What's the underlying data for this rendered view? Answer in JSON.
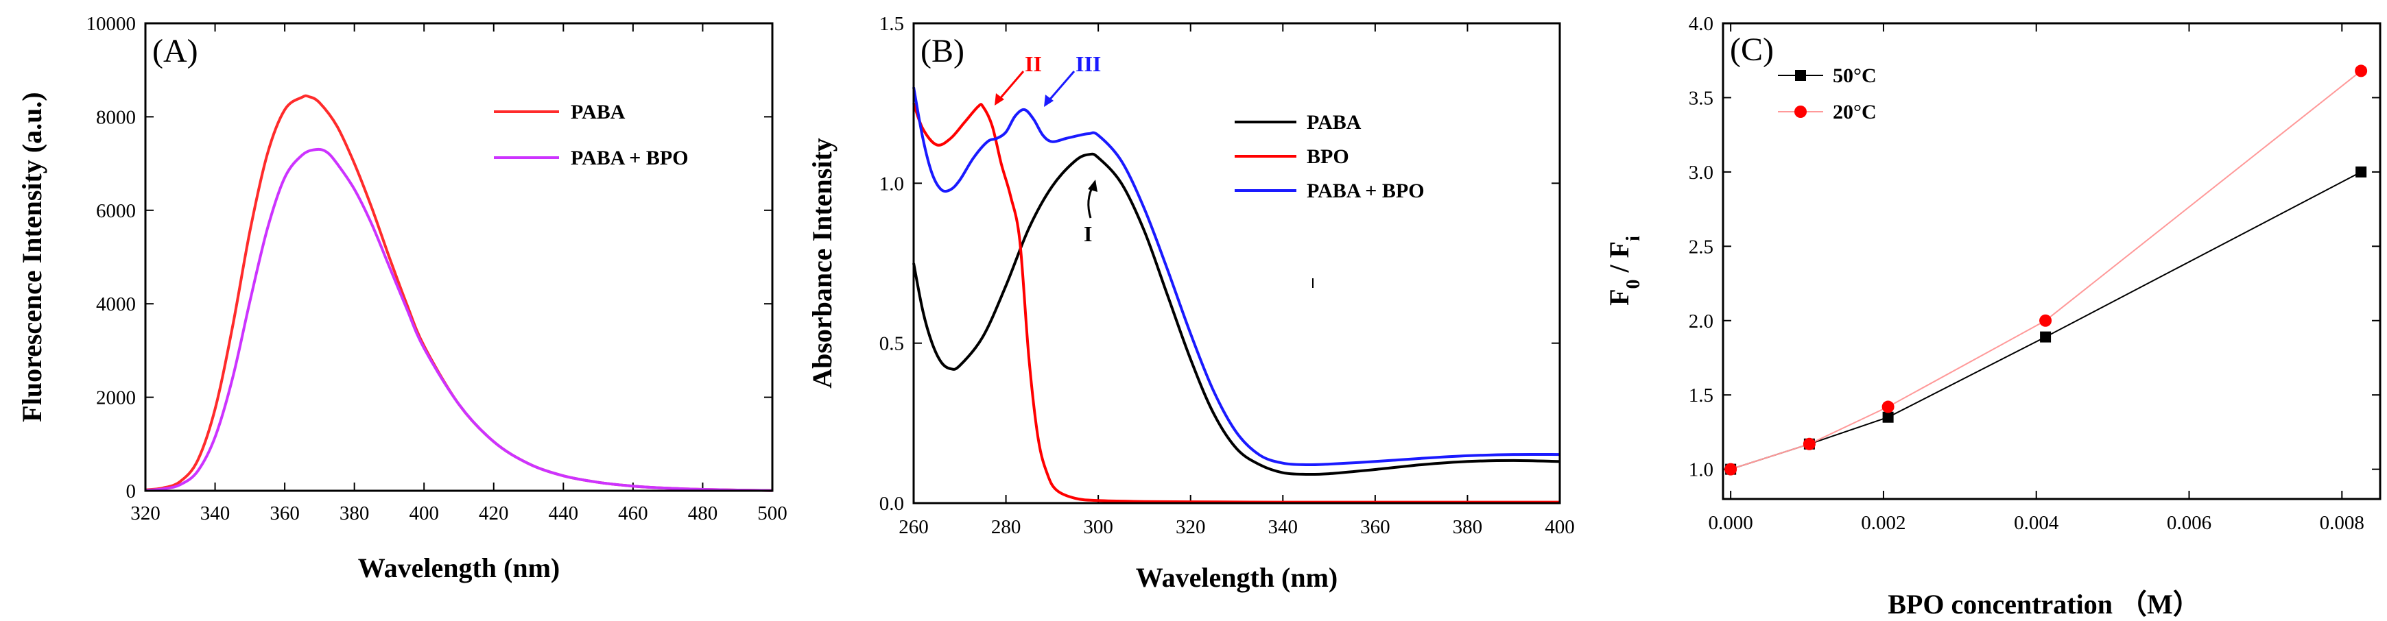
{
  "chart_data": [
    {
      "id": "A",
      "type": "line",
      "title": "(A)",
      "xlabel": "Wavelength (nm)",
      "ylabel": "Fluorescence Intensity (a.u.)",
      "xlim": [
        320,
        500
      ],
      "ylim": [
        0,
        10000
      ],
      "xticks": [
        320,
        340,
        360,
        380,
        400,
        420,
        440,
        460,
        480,
        500
      ],
      "yticks": [
        0,
        2000,
        4000,
        6000,
        8000,
        10000
      ],
      "legend_position": "top-right",
      "series": [
        {
          "name": "PABA",
          "color": "#ff2b2b",
          "x": [
            320,
            325,
            330,
            335,
            340,
            345,
            350,
            355,
            360,
            365,
            367,
            370,
            375,
            380,
            385,
            390,
            395,
            400,
            410,
            420,
            430,
            440,
            450,
            460,
            470,
            480,
            490,
            500
          ],
          "y": [
            20,
            60,
            200,
            650,
            1750,
            3500,
            5550,
            7200,
            8150,
            8420,
            8430,
            8300,
            7800,
            7000,
            6050,
            5000,
            4000,
            3100,
            1850,
            1050,
            580,
            320,
            180,
            100,
            55,
            30,
            15,
            5
          ]
        },
        {
          "name": "PABA + BPO",
          "color": "#cc33ff",
          "x": [
            320,
            325,
            330,
            335,
            340,
            345,
            350,
            355,
            360,
            365,
            369,
            372,
            375,
            380,
            385,
            390,
            395,
            400,
            410,
            420,
            430,
            440,
            450,
            460,
            470,
            480,
            490,
            500
          ],
          "y": [
            10,
            40,
            130,
            420,
            1150,
            2400,
            4050,
            5600,
            6700,
            7180,
            7300,
            7250,
            7000,
            6450,
            5700,
            4800,
            3900,
            3050,
            1850,
            1050,
            580,
            320,
            180,
            100,
            55,
            30,
            15,
            5
          ]
        }
      ]
    },
    {
      "id": "B",
      "type": "line",
      "title": "(B)",
      "xlabel": "Wavelength (nm)",
      "ylabel": "Absorbance Intensity",
      "xlim": [
        260,
        400
      ],
      "ylim": [
        0,
        1.5
      ],
      "xticks": [
        260,
        280,
        300,
        320,
        340,
        360,
        380,
        400
      ],
      "yticks": [
        0.0,
        0.5,
        1.0,
        1.5
      ],
      "ytick_labels": [
        "0.0",
        "0.5",
        "1.0",
        "1.5"
      ],
      "legend_position": "center-right",
      "annotations": [
        {
          "text": "I",
          "color": "#000000"
        },
        {
          "text": "II",
          "color": "#ff0000"
        },
        {
          "text": "III",
          "color": "#1a1aff"
        }
      ],
      "series": [
        {
          "name": "PABA",
          "color": "#000000",
          "x": [
            260,
            262,
            264,
            266,
            268,
            270,
            275,
            280,
            285,
            290,
            295,
            298,
            300,
            305,
            310,
            315,
            320,
            325,
            330,
            335,
            340,
            345,
            350,
            360,
            370,
            380,
            390,
            400
          ],
          "y": [
            0.75,
            0.6,
            0.5,
            0.44,
            0.42,
            0.43,
            0.52,
            0.68,
            0.86,
            0.99,
            1.07,
            1.09,
            1.08,
            1.0,
            0.85,
            0.65,
            0.45,
            0.28,
            0.17,
            0.12,
            0.095,
            0.09,
            0.092,
            0.105,
            0.12,
            0.13,
            0.133,
            0.13
          ]
        },
        {
          "name": "BPO",
          "color": "#ff0000",
          "x": [
            260,
            262,
            265,
            268,
            271,
            274,
            275,
            277,
            279,
            281,
            283,
            285,
            287,
            289,
            291,
            295,
            300,
            310,
            320,
            340,
            360,
            380,
            400
          ],
          "y": [
            1.25,
            1.17,
            1.12,
            1.14,
            1.19,
            1.24,
            1.24,
            1.18,
            1.06,
            0.96,
            0.82,
            0.45,
            0.2,
            0.09,
            0.04,
            0.015,
            0.008,
            0.005,
            0.004,
            0.003,
            0.003,
            0.003,
            0.003
          ]
        },
        {
          "name": "PABA + BPO",
          "color": "#1a1aff",
          "x": [
            260,
            262,
            264,
            266,
            268,
            270,
            273,
            276,
            278,
            280,
            282,
            284,
            286,
            288,
            290,
            293,
            296,
            298,
            300,
            305,
            310,
            315,
            320,
            325,
            330,
            335,
            340,
            345,
            350,
            360,
            370,
            380,
            390,
            400
          ],
          "y": [
            1.3,
            1.14,
            1.03,
            0.98,
            0.98,
            1.01,
            1.08,
            1.13,
            1.14,
            1.16,
            1.21,
            1.23,
            1.2,
            1.15,
            1.13,
            1.14,
            1.15,
            1.155,
            1.15,
            1.07,
            0.92,
            0.73,
            0.53,
            0.35,
            0.22,
            0.15,
            0.125,
            0.12,
            0.122,
            0.13,
            0.14,
            0.148,
            0.152,
            0.152
          ]
        }
      ]
    },
    {
      "id": "C",
      "type": "line",
      "title": "(C)",
      "xlabel": "BPO concentration （M）",
      "ylabel_main": "F",
      "ylabel_sub1": "0",
      "ylabel_mid": " / F",
      "ylabel_sub2": "i",
      "xlim": [
        -0.0001,
        0.0085
      ],
      "ylim": [
        0.8,
        4.0
      ],
      "xticks": [
        0.0,
        0.002,
        0.004,
        0.006,
        0.008
      ],
      "xtick_labels": [
        "0.000",
        "0.002",
        "0.004",
        "0.006",
        "0.008"
      ],
      "yticks": [
        1.0,
        1.5,
        2.0,
        2.5,
        3.0,
        3.5,
        4.0
      ],
      "ytick_labels": [
        "1.0",
        "1.5",
        "2.0",
        "2.5",
        "3.0",
        "3.5",
        "4.0"
      ],
      "legend_position": "top-left",
      "series": [
        {
          "name": "50°C",
          "color": "#000000",
          "marker": "square",
          "x": [
            0.0,
            0.00103,
            0.00206,
            0.00412,
            0.00825
          ],
          "y": [
            1.0,
            1.17,
            1.35,
            1.89,
            3.0
          ]
        },
        {
          "name": "20°C",
          "color": "#ff0000",
          "line_color": "#ff9999",
          "marker": "circle",
          "x": [
            0.0,
            0.00103,
            0.00206,
            0.00412,
            0.00825
          ],
          "y": [
            1.0,
            1.17,
            1.42,
            2.0,
            3.68
          ]
        }
      ]
    }
  ]
}
